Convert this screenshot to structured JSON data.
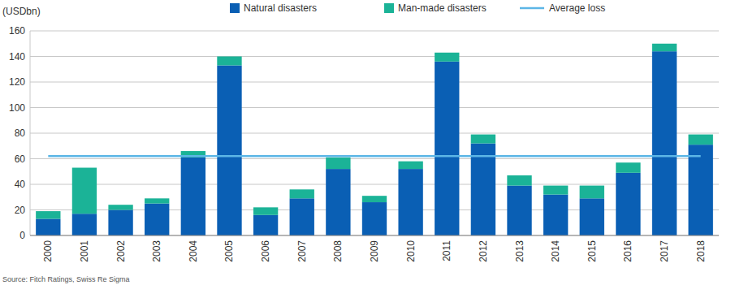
{
  "chart_data": {
    "type": "bar",
    "y_label": "(USDbn)",
    "source": "Source: Fitch Ratings, Swiss Re Sigma",
    "categories": [
      "2000",
      "2001",
      "2002",
      "2003",
      "2004",
      "2005",
      "2006",
      "2007",
      "2008",
      "2009",
      "2010",
      "2011",
      "2012",
      "2013",
      "2014",
      "2015",
      "2016",
      "2017",
      "2018"
    ],
    "series": [
      {
        "name": "Natural disasters",
        "type": "bar",
        "color": "#0a5fb4",
        "values": [
          13,
          17,
          20,
          25,
          61,
          133,
          16,
          29,
          52,
          26,
          52,
          136,
          72,
          39,
          32,
          29,
          49,
          144,
          71
        ]
      },
      {
        "name": "Man-made disasters",
        "type": "bar",
        "color": "#1bb397",
        "values": [
          6,
          36,
          4,
          4,
          5,
          7,
          6,
          7,
          9,
          5,
          6,
          7,
          7,
          8,
          7,
          10,
          8,
          6,
          8
        ]
      },
      {
        "name": "Average loss",
        "type": "line",
        "color": "#5cb6e6",
        "values": [
          62,
          62,
          62,
          62,
          62,
          62,
          62,
          62,
          62,
          62,
          62,
          62,
          62,
          62,
          62,
          62,
          62,
          62,
          62
        ]
      }
    ],
    "stacked": true,
    "grid": true,
    "legend": "top",
    "ylim": [
      0,
      160
    ],
    "yticks": [
      0,
      20,
      40,
      60,
      80,
      100,
      120,
      140,
      160
    ]
  }
}
